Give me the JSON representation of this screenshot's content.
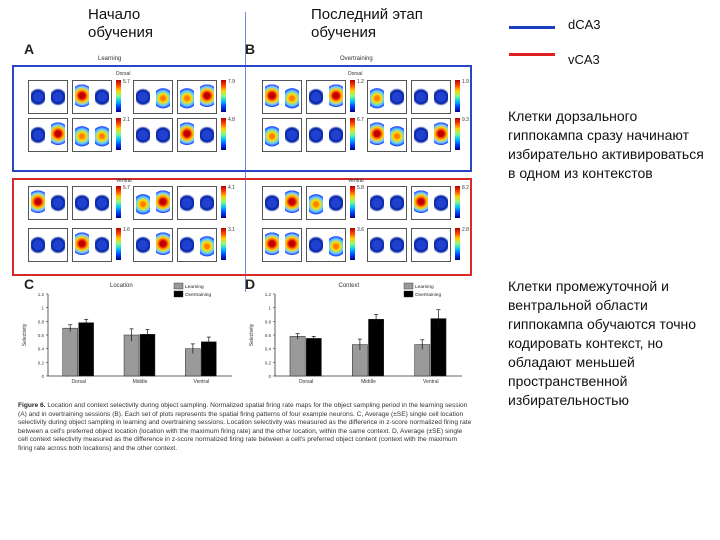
{
  "slide": {
    "header_left": "Начало\nобучения",
    "header_right": "Последний этап\nобучения",
    "legend": [
      {
        "label": "dCA3",
        "color": "#1a3fbf"
      },
      {
        "label": "vCA3",
        "color": "#e02020"
      }
    ],
    "note_dorsal": "Клетки дорзального гиппокампа сразу начинают избирательно активироваться в одном из контекстов",
    "note_ventral": "Клетки промежуточной и вентральной области гиппокампа обучаются точно кодировать контекст, но обладают меньшей пространственной избирательностью"
  },
  "figure": {
    "panels": {
      "A": {
        "letter": "A",
        "title": "Learning",
        "dorsal": "Dorsal",
        "ventral": "Ventral"
      },
      "B": {
        "letter": "B",
        "title": "Overtraining",
        "dorsal": "Dorsal",
        "ventral": "Ventral"
      },
      "C": {
        "letter": "C",
        "title": "Location",
        "ylabel": "Selectivity"
      },
      "D": {
        "letter": "D",
        "title": "Context",
        "ylabel": "Selectivity"
      }
    },
    "map_max_labels": [
      "5.7",
      "7.9",
      "2.1",
      "4.8",
      "5.7",
      "4.1",
      "1.6",
      "3.1",
      "1.2",
      "1.9",
      "6.7",
      "9.3",
      "5.8",
      "8.2",
      "3.6",
      "2.8"
    ],
    "caption_title": "Figure 6.",
    "caption_text": "Location and context selectivity during object sampling. Normalized spatial firing rate maps for the object sampling period in the learning session (A) and in overtraining sessions (B). Each set of plots represents the spatial firing patterns of four example neurons. C, Average (±SE) single cell location selectivity during object sampling in learning and overtraining sessions. Location selectivity was measured as the difference in z-score normalized firing rate between a cell's preferred object location (location with the maximum firing rate) and the other location, within the same context. D, Average (±SE) single cell context selectivity measured as the difference in z-score normalized firing rate between a cell's preferred object content (context with the maximum firing rate across both locations) and the other context."
  },
  "chart_data": [
    {
      "type": "bar",
      "title": "Location",
      "categories": [
        "Dorsal",
        "Middle",
        "Ventral"
      ],
      "series": [
        {
          "name": "Learning",
          "values": [
            0.7,
            0.6,
            0.4
          ],
          "errors": [
            0.05,
            0.09,
            0.07
          ],
          "color": "#9a9a9a"
        },
        {
          "name": "Overtraining",
          "values": [
            0.78,
            0.61,
            0.5
          ],
          "errors": [
            0.05,
            0.07,
            0.07
          ],
          "color": "#000000"
        }
      ],
      "ylabel": "Selectivity",
      "ylim": [
        0,
        1.2
      ],
      "yticks": [
        "0",
        "0.2",
        "0.4",
        "0.6",
        "0.8",
        "1",
        "1.2"
      ],
      "legend": "top-right"
    },
    {
      "type": "bar",
      "title": "Context",
      "categories": [
        "Dorsal",
        "Middle",
        "Ventral"
      ],
      "series": [
        {
          "name": "Learning",
          "values": [
            0.58,
            0.46,
            0.46
          ],
          "errors": [
            0.04,
            0.08,
            0.07
          ],
          "color": "#9a9a9a"
        },
        {
          "name": "Overtraining",
          "values": [
            0.55,
            0.83,
            0.84
          ],
          "errors": [
            0.03,
            0.07,
            0.13
          ],
          "color": "#000000"
        }
      ],
      "ylabel": "Selectivity",
      "ylim": [
        0,
        1.2
      ],
      "yticks": [
        "0",
        "0.2",
        "0.4",
        "0.6",
        "0.8",
        "1",
        "1.2"
      ],
      "legend": "top-right"
    }
  ]
}
